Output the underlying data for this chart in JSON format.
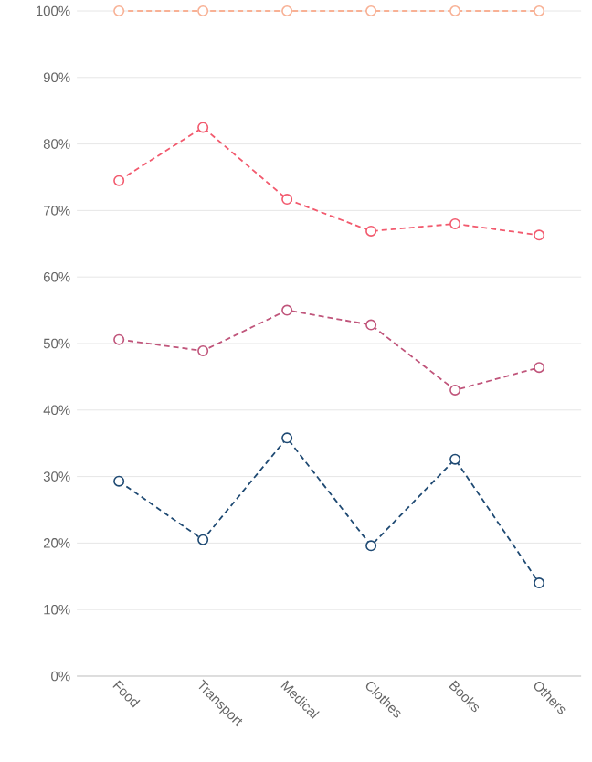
{
  "chart_data": {
    "type": "line",
    "categories": [
      "Food",
      "Transport",
      "Medical",
      "Clothes",
      "Books",
      "Others"
    ],
    "series": [
      {
        "color": "#1f4a73",
        "values": [
          29.3,
          20.5,
          35.8,
          19.6,
          32.6,
          14.0
        ]
      },
      {
        "color": "#c0557b",
        "values": [
          50.6,
          48.9,
          55.0,
          52.8,
          43.0,
          46.4
        ]
      },
      {
        "color": "#f25a6e",
        "values": [
          74.5,
          82.5,
          71.7,
          66.9,
          68.0,
          66.3
        ]
      },
      {
        "color": "#f8b195",
        "values": [
          100,
          100,
          100,
          100,
          100,
          100
        ]
      }
    ],
    "ylim": [
      0,
      100
    ],
    "yticks": [
      {
        "value": 0,
        "label": "0%"
      },
      {
        "value": 10,
        "label": "10%"
      },
      {
        "value": 20,
        "label": "20%"
      },
      {
        "value": 30,
        "label": "30%"
      },
      {
        "value": 40,
        "label": "40%"
      },
      {
        "value": 50,
        "label": "50%"
      },
      {
        "value": 60,
        "label": "60%"
      },
      {
        "value": 70,
        "label": "70%"
      },
      {
        "value": 80,
        "label": "80%"
      },
      {
        "value": 90,
        "label": "90%"
      },
      {
        "value": 100,
        "label": "100%"
      }
    ],
    "grid": "y",
    "marker": "circle",
    "line_style": "dashed"
  }
}
